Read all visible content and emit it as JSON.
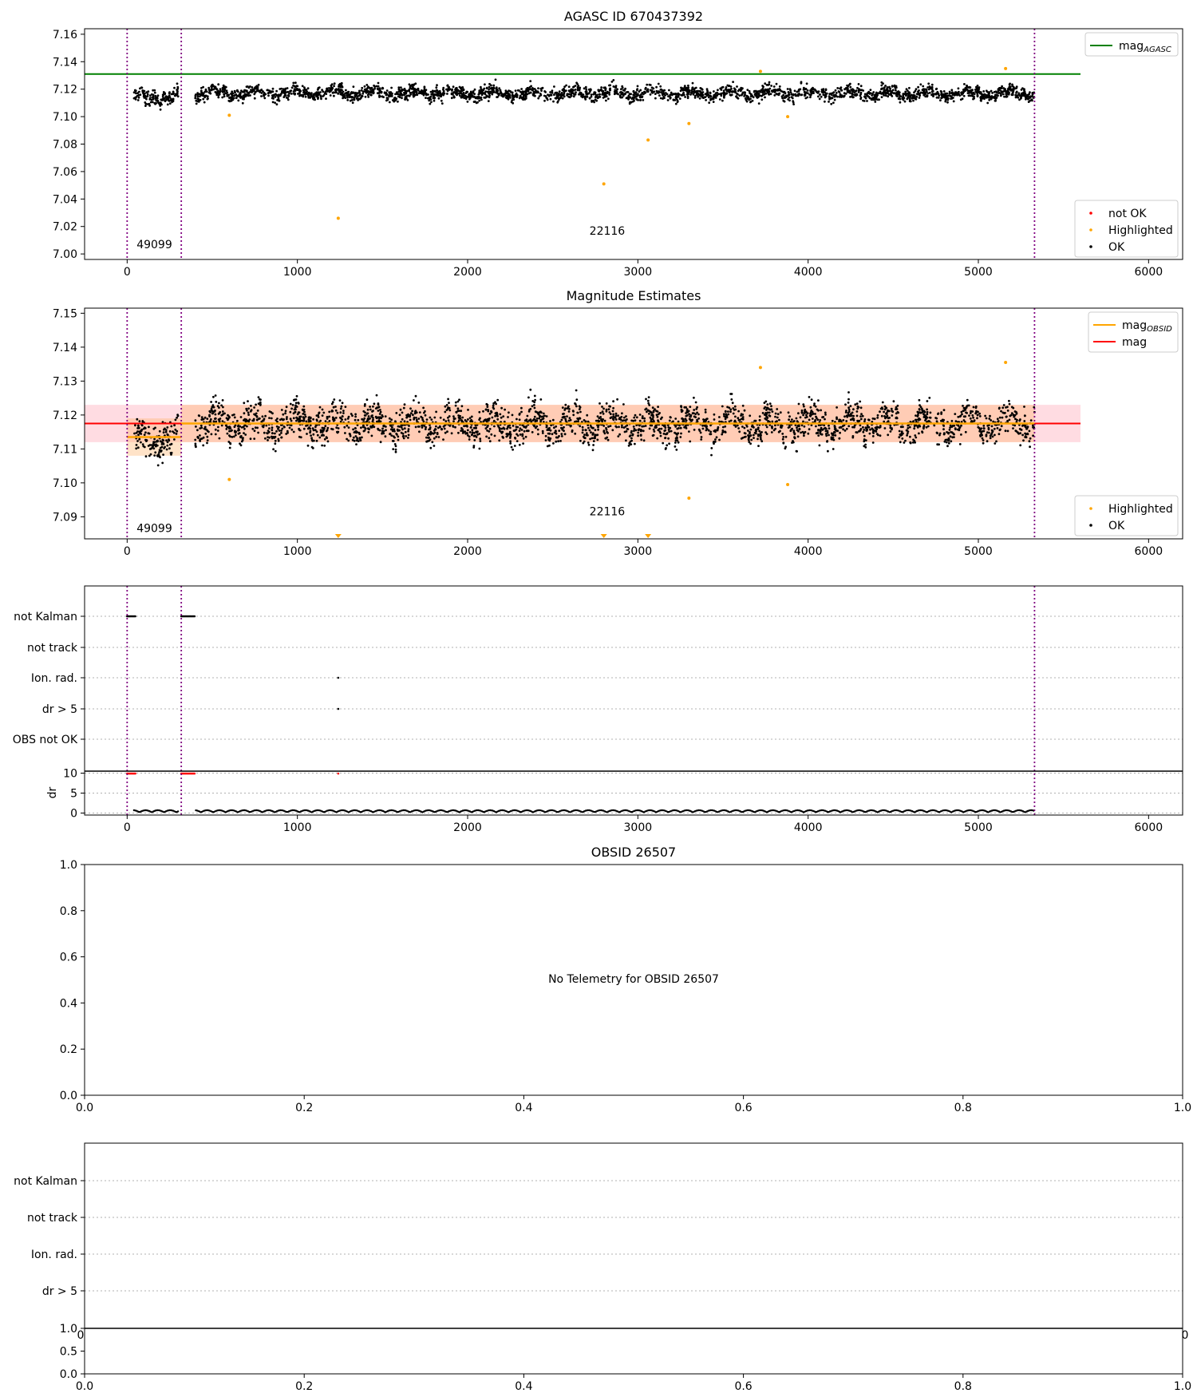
{
  "figure": {
    "background": "#ffffff"
  },
  "chart_data": [
    {
      "type": "scatter",
      "title": "AGASC ID 670437392",
      "xlim": [
        -250,
        6200
      ],
      "ylim": [
        6.996,
        7.164
      ],
      "xticks": [
        "0",
        "1000",
        "2000",
        "3000",
        "4000",
        "5000",
        "6000"
      ],
      "yticks": [
        "7.00",
        "7.02",
        "7.04",
        "7.06",
        "7.08",
        "7.10",
        "7.12",
        "7.14",
        "7.16"
      ],
      "legend_top": {
        "placement": "top-right",
        "entries": [
          {
            "label": "mag",
            "subscript": "AGASC",
            "color": "#008000"
          }
        ]
      },
      "legend_bottom": {
        "placement": "bottom-right",
        "entries": [
          {
            "label": "not OK",
            "color": "#ff0000"
          },
          {
            "label": "Highlighted",
            "color": "#ffa500"
          },
          {
            "label": "OK",
            "color": "#000000"
          }
        ]
      },
      "hline": {
        "y": 7.131,
        "x_end": 5600,
        "color": "#008000"
      },
      "obs_lines": {
        "x": [
          0,
          318,
          5330
        ],
        "color": "#800080"
      },
      "obs_labels": [
        {
          "text": "49099",
          "x": 160,
          "y": 7.004
        },
        {
          "text": "22116",
          "x": 2820,
          "y": 7.014
        }
      ],
      "ok_segments": [
        {
          "x": [
            40,
            300
          ],
          "center": 7.114,
          "spread": 0.007
        },
        {
          "x": [
            400,
            5330
          ],
          "center": 7.117,
          "spread": 0.006
        }
      ],
      "highlighted_points": {
        "x": [
          600,
          1240,
          2800,
          3060,
          3300,
          3880,
          3720,
          5160
        ],
        "y": [
          7.101,
          7.026,
          7.051,
          7.083,
          7.095,
          7.1,
          7.133,
          7.135
        ]
      }
    },
    {
      "type": "scatter",
      "title": "Magnitude Estimates",
      "xlim": [
        -250,
        6200
      ],
      "ylim": [
        7.0835,
        7.1515
      ],
      "xticks": [
        "0",
        "1000",
        "2000",
        "3000",
        "4000",
        "5000",
        "6000"
      ],
      "yticks": [
        "7.09",
        "7.10",
        "7.11",
        "7.12",
        "7.13",
        "7.14",
        "7.15"
      ],
      "legend_top": {
        "placement": "top-right",
        "entries": [
          {
            "label": "mag",
            "subscript": "OBSID",
            "color": "#ffa500"
          },
          {
            "label": "mag",
            "subscript": "",
            "color": "#ff0000"
          }
        ]
      },
      "legend_bottom": {
        "placement": "bottom-right",
        "entries": [
          {
            "label": "Highlighted",
            "color": "#ffa500"
          },
          {
            "label": "OK",
            "color": "#000000"
          }
        ]
      },
      "mag_line": {
        "y": 7.1175,
        "band": [
          7.112,
          7.123
        ],
        "x_end": 5600,
        "color": "#ff0000",
        "band_color": "#ffd0d8"
      },
      "obsid_mag": {
        "segments": [
          {
            "x": [
              0,
              318
            ],
            "y": 7.1135
          },
          {
            "x": [
              318,
              5330
            ],
            "y": 7.1175
          }
        ],
        "band_halfwidth": 0.0055,
        "color": "#ffa500"
      },
      "obs_lines": {
        "x": [
          0,
          318,
          5330
        ],
        "color": "#800080"
      },
      "obs_labels": [
        {
          "text": "49099",
          "x": 160,
          "y": 7.0855
        },
        {
          "text": "22116",
          "x": 2820,
          "y": 7.0905
        }
      ],
      "ok_segments": [
        {
          "x": [
            40,
            300
          ],
          "center": 7.113,
          "spread": 0.007
        },
        {
          "x": [
            400,
            5330
          ],
          "center": 7.1175,
          "spread": 0.0065
        }
      ],
      "highlighted_points": {
        "x": [
          600,
          3300,
          3880,
          3720,
          5160
        ],
        "y": [
          7.101,
          7.0955,
          7.0995,
          7.134,
          7.1355
        ]
      },
      "offscale_markers": {
        "x": [
          1240,
          2800,
          3060
        ]
      }
    },
    {
      "type": "scatter",
      "title": "",
      "xlim": [
        -250,
        6200
      ],
      "flag_rows": [
        "not Kalman",
        "not track",
        "Ion. rad.",
        "dr > 5",
        "OBS not OK"
      ],
      "flag_points": [
        {
          "row": "not Kalman",
          "x_ranges": [
            [
              0,
              50
            ],
            [
              318,
              400
            ]
          ]
        },
        {
          "row": "Ion. rad.",
          "x": [
            1240
          ]
        },
        {
          "row": "dr > 5",
          "x": [
            1240
          ]
        }
      ],
      "dr": {
        "ylabel": "dr",
        "ylim": [
          -0.5,
          10.5
        ],
        "yticks": [
          "0",
          "5",
          "10"
        ],
        "red_ranges": [
          [
            0,
            50
          ],
          [
            318,
            400
          ]
        ],
        "red_points": [
          1240
        ],
        "black_range": [
          40,
          5330
        ]
      },
      "xticks": [
        "0",
        "1000",
        "2000",
        "3000",
        "4000",
        "5000",
        "6000"
      ],
      "obs_lines": {
        "x": [
          0,
          318,
          5330
        ],
        "color": "#800080"
      }
    },
    {
      "type": "scatter",
      "title": "OBSID 26507",
      "message": "No Telemetry for OBSID 26507",
      "xlim": [
        0,
        1
      ],
      "ylim": [
        0,
        1
      ],
      "xticks": [
        "0.0",
        "0.2",
        "0.4",
        "0.6",
        "0.8",
        "1.0"
      ],
      "yticks": [
        "0.0",
        "0.2",
        "0.4",
        "0.6",
        "0.8",
        "1.0"
      ]
    },
    {
      "type": "scatter",
      "title": "",
      "flag_rows": [
        "not Kalman",
        "not track",
        "Ion. rad.",
        "dr > 5"
      ],
      "lower": {
        "yticks": [
          "0.0",
          "0.5",
          "1.0"
        ],
        "xticks": [
          "0.0",
          "0.2",
          "0.4",
          "0.6",
          "0.8",
          "1.0"
        ],
        "clipped_xticks": [
          "0",
          "0"
        ]
      }
    }
  ]
}
